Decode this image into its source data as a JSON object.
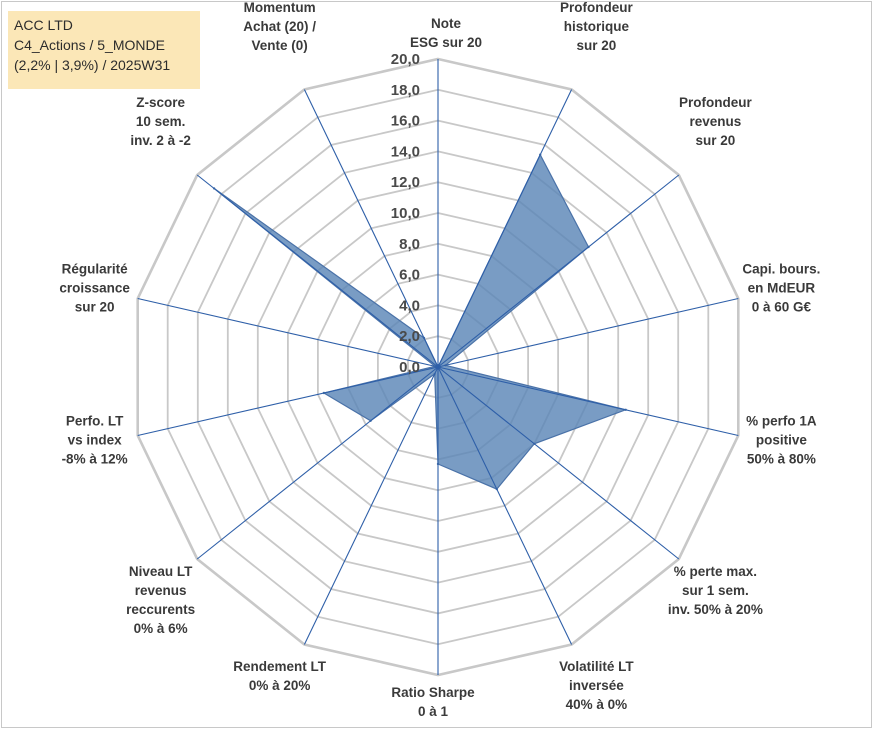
{
  "header": {
    "lines": [
      "ACC LTD",
      "C4_Actions / 5_MONDE",
      "(2,2% | 3,9%) / 2025W31"
    ]
  },
  "colors": {
    "fill": "#5b86b7",
    "stroke": "#4a72a8",
    "spoke": "#2e5fa8",
    "grid": "#c8c8c8",
    "header_bg": "#fbe7b7"
  },
  "chart_data": {
    "type": "radar",
    "rlim": [
      0,
      20
    ],
    "grid": true,
    "tick_labels": [
      "0,0",
      "2,0",
      "4,0",
      "6,0",
      "8,0",
      "10,0",
      "12,0",
      "14,0",
      "16,0",
      "18,0",
      "20,0"
    ],
    "axes": [
      [
        "Note",
        "ESG sur 20"
      ],
      [
        "Profondeur",
        "historique",
        "sur 20"
      ],
      [
        "Profondeur",
        "revenus",
        "sur 20"
      ],
      [
        "Capi. bours.",
        "en MdEUR",
        "0 à 60 G€"
      ],
      [
        "% perfo 1A",
        "positive",
        "50% à 80%"
      ],
      [
        "% perte max.",
        "sur 1 sem.",
        "inv. 50% à 20%"
      ],
      [
        "Volatilité LT",
        "inversée",
        "40% à 0%"
      ],
      [
        "Ratio Sharpe",
        "0 à 1"
      ],
      [
        "Rendement LT",
        "0% à 20%"
      ],
      [
        "Niveau LT",
        "revenus",
        "reccurents",
        "0% à 6%"
      ],
      [
        "Perfo. LT",
        "vs index",
        "-8% à 12%"
      ],
      [
        "Régularité",
        "croissance",
        "sur 20"
      ],
      [
        "Z-score",
        "10 sem.",
        "inv. 2 à -2"
      ],
      [
        "Momentum",
        "Achat (20) /",
        "Vente (0)"
      ]
    ],
    "values": [
      0.0,
      15.3,
      12.5,
      0.5,
      12.5,
      8.0,
      8.8,
      6.3,
      0.5,
      5.6,
      7.6,
      0.2,
      18.6,
      2.1
    ]
  }
}
